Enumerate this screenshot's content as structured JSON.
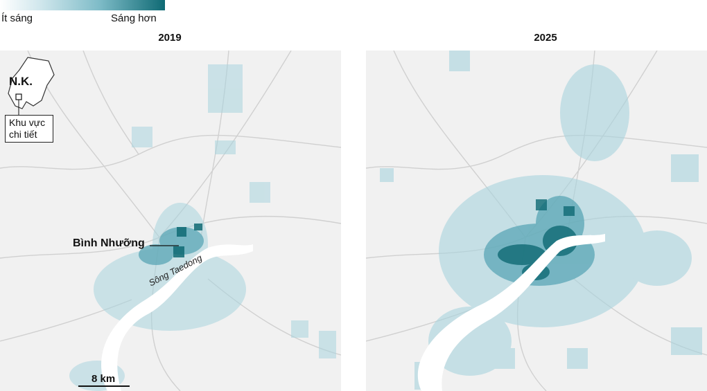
{
  "legend": {
    "low_label": "Ít sáng",
    "high_label": "Sáng hơn",
    "colors": [
      "#ffffff",
      "#cfe6ec",
      "#7fbcc8",
      "#0f6a74"
    ]
  },
  "panels": [
    {
      "id": "left",
      "title": "2019"
    },
    {
      "id": "right",
      "title": "2025"
    }
  ],
  "locator": {
    "country_label": "N.K.",
    "detail_label_line1": "Khu vực",
    "detail_label_line2": "chi tiết"
  },
  "city_label": "Bình Nhưỡng",
  "river_label": "Sông Taedong",
  "scale": {
    "label": "8 km"
  },
  "colors": {
    "light_blue": "#a9d4de",
    "mid_blue": "#5aa6b5",
    "dark_blue": "#0f6a74",
    "river": "#ffffff",
    "roads": "#c9c9c9",
    "terrain": "#f1f1f1"
  }
}
